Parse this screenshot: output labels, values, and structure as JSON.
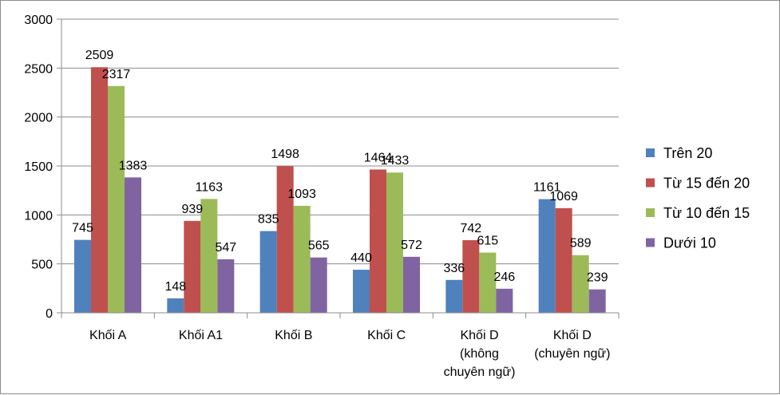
{
  "chart_data": {
    "type": "bar",
    "categories": [
      [
        "Khối A"
      ],
      [
        "Khối A1"
      ],
      [
        "Khối B"
      ],
      [
        "Khối C"
      ],
      [
        "Khối D",
        "(không",
        "chuyên ngữ)"
      ],
      [
        "Khối D",
        "(chuyên ngữ)"
      ]
    ],
    "series": [
      {
        "name": "Trên 20",
        "color": "#4f81bd",
        "values": [
          745,
          148,
          835,
          440,
          336,
          1161
        ]
      },
      {
        "name": "Từ 15 đến 20",
        "color": "#c0504d",
        "values": [
          2509,
          939,
          1498,
          1464,
          742,
          1069
        ]
      },
      {
        "name": "Từ 10 đến 15",
        "color": "#9bbb59",
        "values": [
          2317,
          1163,
          1093,
          1433,
          615,
          589
        ]
      },
      {
        "name": "Dưới 10",
        "color": "#8064a2",
        "values": [
          1383,
          547,
          565,
          572,
          246,
          239
        ]
      }
    ],
    "ylim": [
      0,
      3000
    ],
    "yticks": [
      "0",
      "500",
      "1000",
      "1500",
      "2000",
      "2500",
      "3000"
    ],
    "grid": true,
    "legend": "right",
    "title": "",
    "xlabel": "",
    "ylabel": ""
  }
}
